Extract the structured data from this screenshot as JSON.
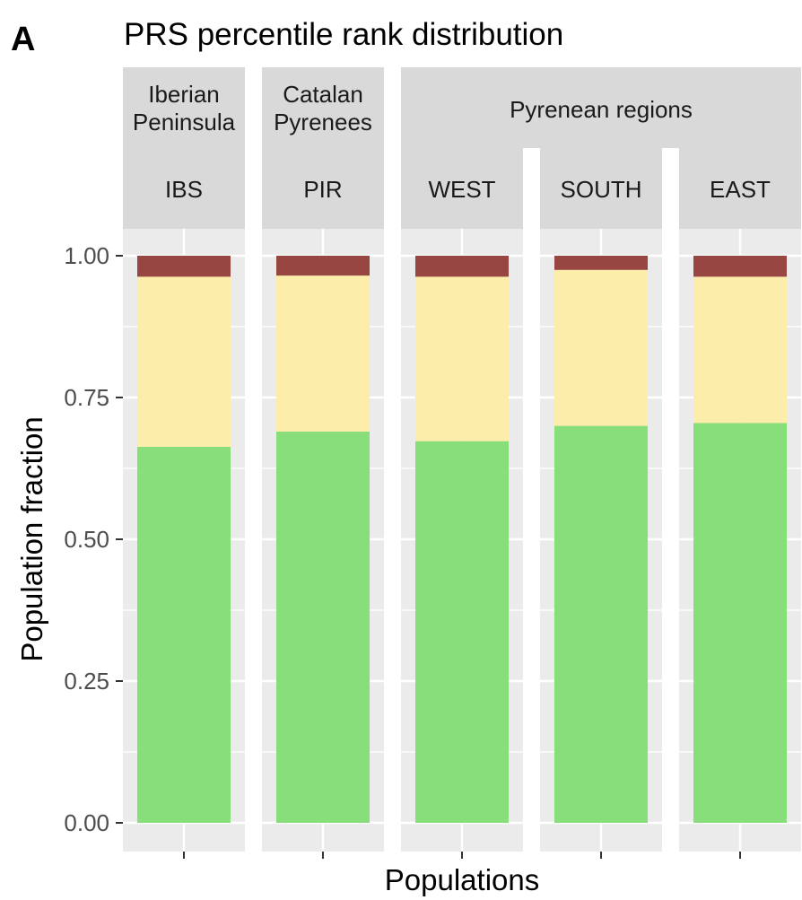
{
  "panel_letter": "A",
  "chart_data": {
    "type": "bar",
    "stacked": true,
    "title": "PRS percentile rank distribution",
    "xlabel": "Populations",
    "ylabel": "Population fraction",
    "ylim": [
      0,
      1
    ],
    "y_ticks": [
      "0.00",
      "0.25",
      "0.50",
      "0.75",
      "1.00"
    ],
    "y_tick_values": [
      0,
      0.25,
      0.5,
      0.75,
      1.0
    ],
    "grid": true,
    "legend": "none",
    "facet_groups": [
      {
        "label_lines": [
          "Iberian",
          "Peninsula"
        ],
        "facets": [
          "IBS"
        ]
      },
      {
        "label_lines": [
          "Catalan",
          "Pyrenees"
        ],
        "facets": [
          "PIR"
        ]
      },
      {
        "label_lines": [
          "Pyrenean regions"
        ],
        "facets": [
          "WEST",
          "SOUTH",
          "EAST"
        ]
      }
    ],
    "categories": [
      "IBS",
      "PIR",
      "WEST",
      "SOUTH",
      "EAST"
    ],
    "series": [
      {
        "color": "#87DE7A",
        "values": [
          0.663,
          0.69,
          0.673,
          0.7,
          0.705
        ]
      },
      {
        "color": "#FDEDAA",
        "values": [
          0.3,
          0.275,
          0.29,
          0.275,
          0.258
        ]
      },
      {
        "color": "#974641",
        "values": [
          0.037,
          0.035,
          0.037,
          0.025,
          0.037
        ]
      }
    ]
  }
}
